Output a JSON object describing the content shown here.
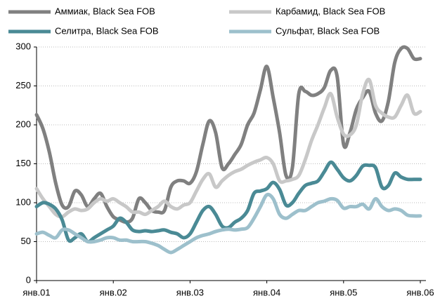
{
  "chart_data": {
    "type": "line",
    "categories": [
      "янв.01",
      null,
      null,
      null,
      null,
      null,
      null,
      null,
      null,
      null,
      null,
      null,
      "янв.02",
      null,
      null,
      null,
      null,
      null,
      null,
      null,
      null,
      null,
      null,
      null,
      "янв.03",
      null,
      null,
      null,
      null,
      null,
      null,
      null,
      null,
      null,
      null,
      null,
      "янв.04",
      null,
      null,
      null,
      null,
      null,
      null,
      null,
      null,
      null,
      null,
      null,
      "янв.05",
      null,
      null,
      null,
      null,
      null,
      null,
      null,
      null,
      null,
      null,
      null,
      "янв.06"
    ],
    "series": [
      {
        "name": "Аммиак, Black Sea FOB",
        "color": "#808080",
        "values": [
          213,
          195,
          165,
          125,
          97,
          95,
          115,
          110,
          95,
          105,
          112,
          95,
          82,
          78,
          75,
          80,
          105,
          100,
          90,
          88,
          90,
          120,
          128,
          128,
          125,
          140,
          175,
          205,
          190,
          145,
          150,
          162,
          175,
          200,
          215,
          245,
          275,
          235,
          190,
          135,
          145,
          240,
          243,
          238,
          240,
          248,
          270,
          262,
          175,
          190,
          220,
          235,
          243,
          215,
          205,
          230,
          280,
          298,
          298,
          285,
          285
        ]
      },
      {
        "name": "Карбамид, Black Sea FOB",
        "color": "#c8c8c8",
        "values": [
          118,
          105,
          95,
          85,
          82,
          88,
          92,
          90,
          92,
          100,
          105,
          102,
          105,
          100,
          95,
          88,
          88,
          85,
          90,
          95,
          102,
          95,
          92,
          97,
          100,
          115,
          130,
          137,
          120,
          128,
          135,
          140,
          143,
          148,
          152,
          155,
          158,
          150,
          128,
          128,
          130,
          135,
          155,
          180,
          200,
          222,
          240,
          210,
          188,
          187,
          200,
          240,
          258,
          225,
          215,
          210,
          210,
          225,
          238,
          215,
          217
        ]
      },
      {
        "name": "Селитра, Black Sea FOB",
        "color": "#4a8a95",
        "values": [
          95,
          100,
          98,
          92,
          78,
          52,
          55,
          60,
          50,
          55,
          60,
          65,
          70,
          80,
          75,
          65,
          63,
          64,
          63,
          64,
          65,
          62,
          60,
          55,
          60,
          75,
          90,
          95,
          85,
          70,
          68,
          75,
          80,
          90,
          112,
          115,
          118,
          126,
          117,
          97,
          100,
          112,
          122,
          125,
          128,
          140,
          152,
          143,
          132,
          128,
          135,
          147,
          148,
          145,
          120,
          122,
          138,
          133,
          130,
          130,
          130
        ]
      },
      {
        "name": "Сульфат, Black Sea FOB",
        "color": "#9dc0cc",
        "values": [
          60,
          62,
          58,
          55,
          65,
          65,
          60,
          55,
          50,
          50,
          52,
          55,
          55,
          52,
          52,
          50,
          50,
          50,
          48,
          45,
          40,
          36,
          40,
          45,
          50,
          55,
          58,
          60,
          63,
          65,
          66,
          65,
          66,
          68,
          80,
          95,
          110,
          105,
          85,
          80,
          85,
          90,
          90,
          95,
          100,
          102,
          105,
          103,
          93,
          95,
          95,
          98,
          92,
          105,
          95,
          90,
          92,
          90,
          84,
          83,
          83
        ]
      }
    ],
    "ylim": [
      0,
      300
    ],
    "yticks": [
      0,
      50,
      100,
      150,
      200,
      250,
      300
    ],
    "grid": true
  }
}
